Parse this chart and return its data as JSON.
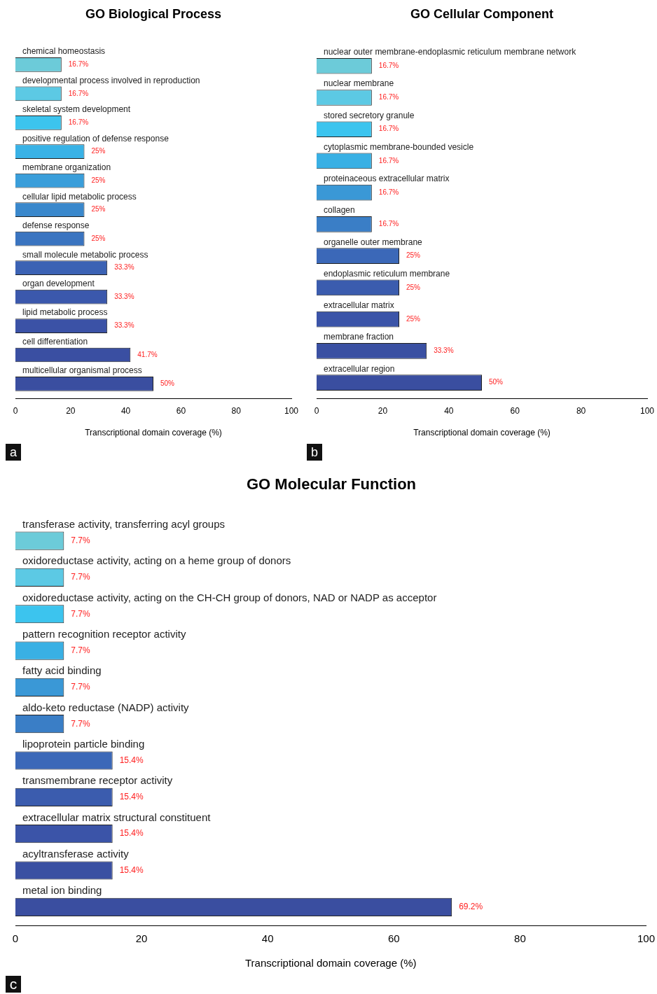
{
  "chart_data": [
    {
      "type": "bar",
      "orientation": "horizontal",
      "title": "GO Biological Process",
      "xlabel": "Transcriptional domain coverage (%)",
      "categories": [
        "chemical homeostasis",
        "developmental process involved in reproduction",
        "skeletal system development",
        "positive regulation of defense response",
        "membrane organization",
        "cellular lipid metabolic process",
        "defense response",
        "small molecule metabolic process",
        "organ development",
        "lipid metabolic process",
        "cell differentiation",
        "multicellular organismal process"
      ],
      "values": [
        16.7,
        16.7,
        16.7,
        25,
        25,
        25,
        25,
        33.3,
        33.3,
        33.3,
        41.7,
        50
      ],
      "value_labels": [
        "16.7%",
        "16.7%",
        "16.7%",
        "25%",
        "25%",
        "25%",
        "25%",
        "33.3%",
        "33.3%",
        "33.3%",
        "41.7%",
        "50%"
      ],
      "colors": [
        "#6ccbd9",
        "#5cc9e4",
        "#3cc4ee",
        "#39b2e6",
        "#3a9eda",
        "#3a88cc",
        "#3a74c0",
        "#3b62b4",
        "#3b58ac",
        "#3b52a6",
        "#3a4fa2",
        "#3a4ea0"
      ],
      "xlim": [
        0,
        100
      ],
      "xticks": [
        0,
        20,
        40,
        60,
        80,
        100
      ],
      "annotations": [
        "a"
      ]
    },
    {
      "type": "bar",
      "orientation": "horizontal",
      "title": "GO Cellular Component",
      "xlabel": "Transcriptional domain coverage (%)",
      "categories": [
        "nuclear outer membrane-endoplasmic reticulum membrane network",
        "nuclear membrane",
        "stored secretory granule",
        "cytoplasmic membrane-bounded vesicle",
        "proteinaceous extracellular matrix",
        "collagen",
        "organelle outer membrane",
        "endoplasmic reticulum membrane",
        "extracellular matrix",
        "membrane fraction",
        "extracellular region"
      ],
      "values": [
        16.7,
        16.7,
        16.7,
        16.7,
        16.7,
        16.7,
        25,
        25,
        25,
        33.3,
        50
      ],
      "value_labels": [
        "16.7%",
        "16.7%",
        "16.7%",
        "16.7%",
        "16.7%",
        "16.7%",
        "25%",
        "25%",
        "25%",
        "33.3%",
        "50%"
      ],
      "colors": [
        "#6ccbd9",
        "#5cc9e4",
        "#3cc4ee",
        "#39b0e4",
        "#3a98d6",
        "#3a7ec6",
        "#3b68b8",
        "#3b5cae",
        "#3b54a8",
        "#3a50a2",
        "#3a4ea0"
      ],
      "xlim": [
        0,
        100
      ],
      "xticks": [
        0,
        20,
        40,
        60,
        80,
        100
      ],
      "annotations": [
        "b"
      ]
    },
    {
      "type": "bar",
      "orientation": "horizontal",
      "title": "GO Molecular Function",
      "xlabel": "Transcriptional domain coverage (%)",
      "categories": [
        "transferase activity, transferring acyl groups",
        "oxidoreductase activity, acting on a heme group of donors",
        "oxidoreductase activity, acting on the CH-CH group of donors, NAD or NADP as acceptor",
        "pattern recognition receptor activity",
        "fatty acid binding",
        "aldo-keto reductase (NADP) activity",
        "lipoprotein particle binding",
        "transmembrane receptor activity",
        "extracellular matrix structural constituent",
        "acyltransferase activity",
        "metal ion binding"
      ],
      "values": [
        7.7,
        7.7,
        7.7,
        7.7,
        7.7,
        7.7,
        15.4,
        15.4,
        15.4,
        15.4,
        69.2
      ],
      "value_labels": [
        "7.7%",
        "7.7%",
        "7.7%",
        "7.7%",
        "7.7%",
        "7.7%",
        "15.4%",
        "15.4%",
        "15.4%",
        "15.4%",
        "69.2%"
      ],
      "colors": [
        "#6ccbd9",
        "#5cc9e4",
        "#3cc4ee",
        "#39b0e4",
        "#3a98d6",
        "#3a7ec6",
        "#3b68b8",
        "#3b5cae",
        "#3b54a8",
        "#3a50a2",
        "#3a4ea0"
      ],
      "xlim": [
        0,
        100
      ],
      "xticks": [
        0,
        20,
        40,
        60,
        80,
        100
      ],
      "annotations": [
        "c"
      ]
    }
  ]
}
